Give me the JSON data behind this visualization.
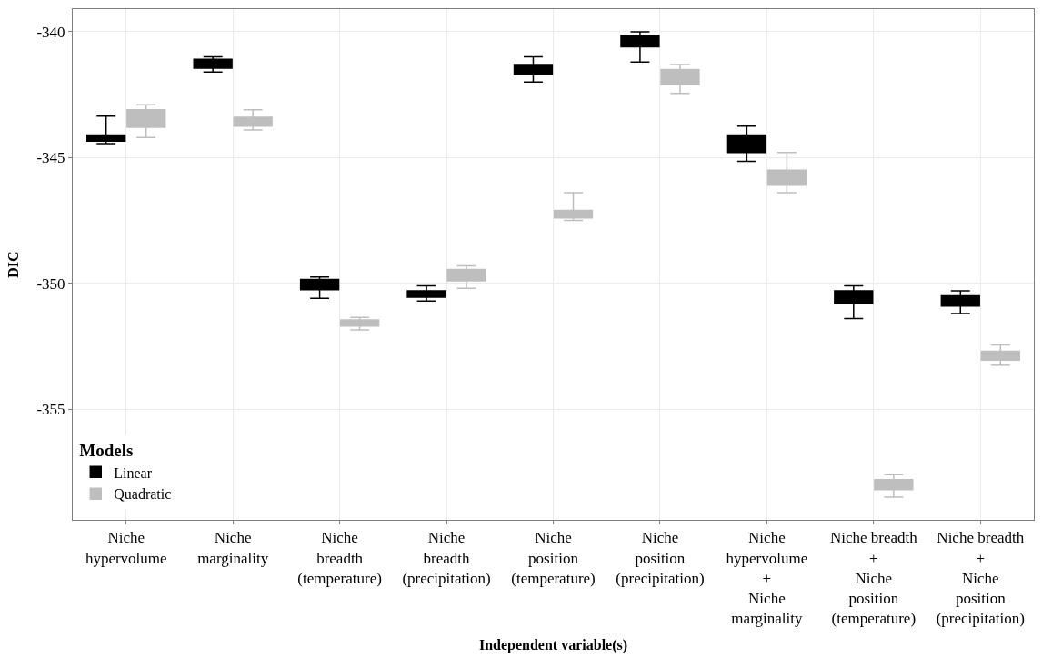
{
  "chart_data": {
    "type": "box",
    "xlabel": "Independent variable(s)",
    "ylabel": "DIC",
    "legend_title": "Models",
    "categories": [
      "Niche\nhypervolume",
      "Niche\nmarginality",
      "Niche\nbreadth\n(temperature)",
      "Niche\nbreadth\n(precipitation)",
      "Niche\nposition\n(temperature)",
      "Niche\nposition\n(precipitation)",
      "Niche\nhypervolume\n+\nNiche\nmarginality",
      "Niche breadth\n+\nNiche\nposition\n(temperature)",
      "Niche breadth\n+\nNiche\nposition\n(precipitation)"
    ],
    "ylim": [
      -359.4,
      -339.1
    ],
    "yticks": [
      -340,
      -345,
      -350,
      -355
    ],
    "grid": true,
    "legend": "bottom left",
    "series": [
      {
        "name": "Linear",
        "color": "#000000",
        "boxes": [
          {
            "low": -344.45,
            "q1": -344.35,
            "median": -344.2,
            "q3": -344.1,
            "high": -343.35
          },
          {
            "low": -341.6,
            "q1": -341.45,
            "median": -341.3,
            "q3": -341.1,
            "high": -341.0
          },
          {
            "low": -350.6,
            "q1": -350.25,
            "median": -350.0,
            "q3": -349.85,
            "high": -349.75
          },
          {
            "low": -350.7,
            "q1": -350.55,
            "median": -350.45,
            "q3": -350.3,
            "high": -350.1
          },
          {
            "low": -342.0,
            "q1": -341.7,
            "median": -341.5,
            "q3": -341.3,
            "high": -341.0
          },
          {
            "low": -341.2,
            "q1": -340.6,
            "median": -340.3,
            "q3": -340.15,
            "high": -340.0
          },
          {
            "low": -345.15,
            "q1": -344.8,
            "median": -344.4,
            "q3": -344.1,
            "high": -343.75
          },
          {
            "low": -351.4,
            "q1": -350.8,
            "median": -350.5,
            "q3": -350.3,
            "high": -350.1
          },
          {
            "low": -351.2,
            "q1": -350.9,
            "median": -350.7,
            "q3": -350.5,
            "high": -350.3
          }
        ]
      },
      {
        "name": "Quadratic",
        "color": "#bebebe",
        "boxes": [
          {
            "low": -344.2,
            "q1": -343.8,
            "median": -343.4,
            "q3": -343.1,
            "high": -342.9
          },
          {
            "low": -343.9,
            "q1": -343.75,
            "median": -343.6,
            "q3": -343.4,
            "high": -343.1
          },
          {
            "low": -351.85,
            "q1": -351.7,
            "median": -351.6,
            "q3": -351.45,
            "high": -351.35
          },
          {
            "low": -350.2,
            "q1": -349.9,
            "median": -349.6,
            "q3": -349.45,
            "high": -349.3
          },
          {
            "low": -347.5,
            "q1": -347.4,
            "median": -347.3,
            "q3": -347.1,
            "high": -346.4
          },
          {
            "low": -342.45,
            "q1": -342.1,
            "median": -341.8,
            "q3": -341.5,
            "high": -341.3
          },
          {
            "low": -346.4,
            "q1": -346.1,
            "median": -345.9,
            "q3": -345.5,
            "high": -344.8
          },
          {
            "low": -358.5,
            "q1": -358.2,
            "median": -358.0,
            "q3": -357.8,
            "high": -357.6
          },
          {
            "low": -353.25,
            "q1": -353.05,
            "median": -352.9,
            "q3": -352.7,
            "high": -352.45
          }
        ]
      }
    ]
  }
}
